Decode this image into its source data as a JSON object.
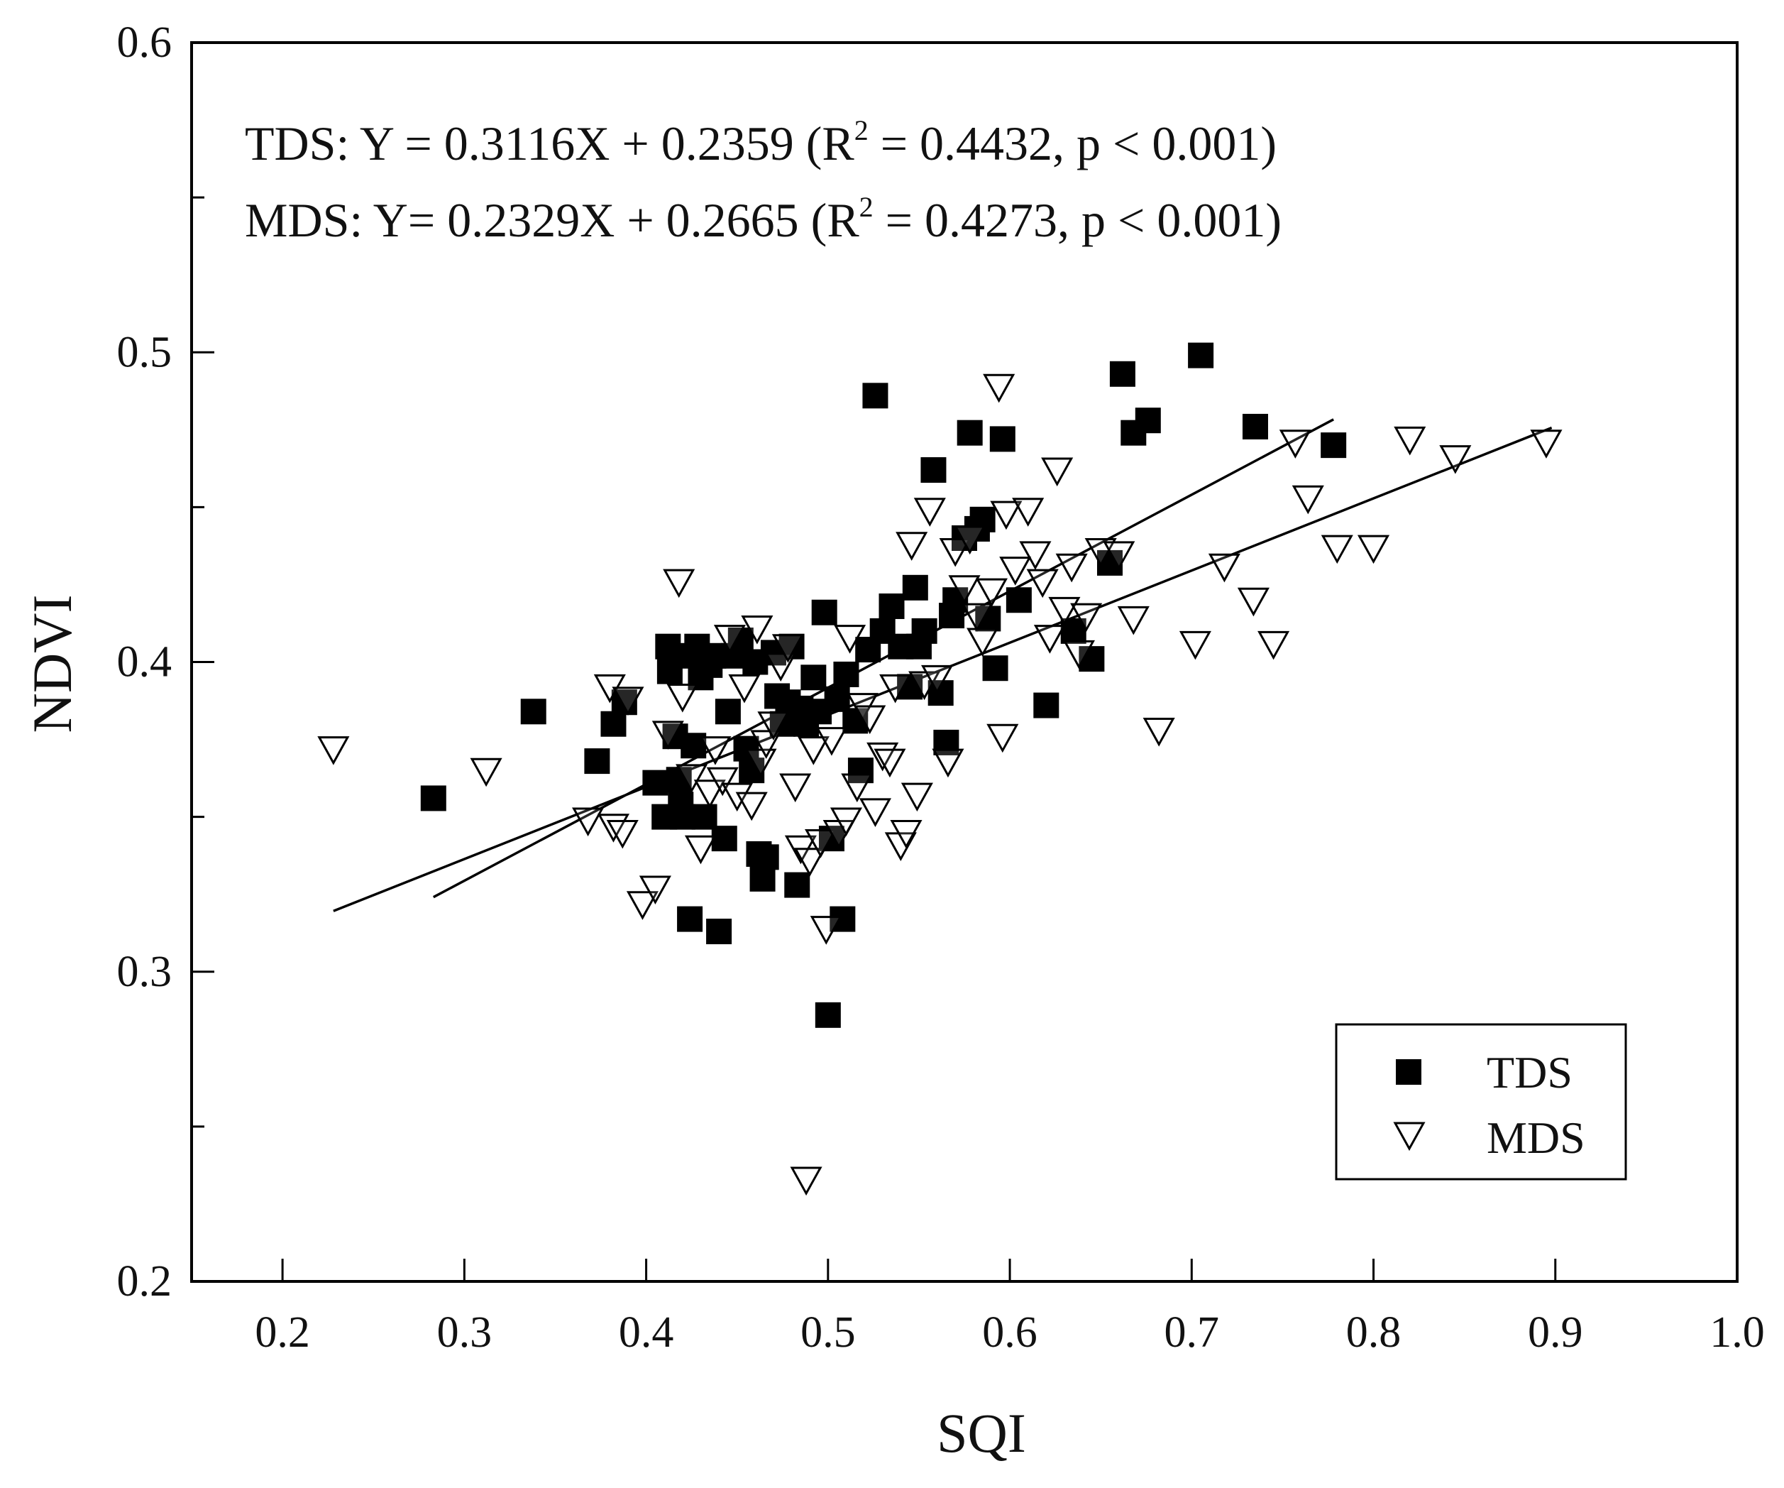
{
  "chart_data": {
    "type": "scatter",
    "xlabel": "SQI",
    "ylabel": "NDVI",
    "xlim": [
      0.15,
      1.0
    ],
    "ylim": [
      0.2,
      0.6
    ],
    "x_ticks_major": [
      0.2,
      0.3,
      0.4,
      0.5,
      0.6,
      0.7,
      0.8,
      0.9,
      1.0
    ],
    "x_tick_labels": [
      "0.2",
      "0.3",
      "0.4",
      "0.5",
      "0.6",
      "0.7",
      "0.8",
      "0.9",
      "1.0"
    ],
    "y_ticks_major": [
      0.2,
      0.3,
      0.4,
      0.5,
      0.6
    ],
    "y_tick_labels": [
      "0.2",
      "0.3",
      "0.4",
      "0.5",
      "0.6"
    ],
    "y_ticks_minor": [
      0.25,
      0.35,
      0.45,
      0.55
    ],
    "grid": false,
    "legend": "bottom-right",
    "annotations": [
      {
        "id": "tds-equation",
        "prefix": "TDS: Y = 0.3116X + 0.2359 (R",
        "sup": "2",
        "suffix": " = 0.4432, p < 0.001)"
      },
      {
        "id": "mds-equation",
        "prefix": "MDS: Y= 0.2329X + 0.2665 (R",
        "sup": "2",
        "suffix": " = 0.4273, p < 0.001)"
      }
    ],
    "series": [
      {
        "name": "TDS",
        "marker": "filled-square",
        "color": "#000000",
        "fit": {
          "slope": 0.3116,
          "intercept": 0.2359,
          "x_range": [
            0.283,
            0.778
          ]
        },
        "points": [
          [
            0.283,
            0.356
          ],
          [
            0.338,
            0.384
          ],
          [
            0.373,
            0.368
          ],
          [
            0.382,
            0.38
          ],
          [
            0.388,
            0.387
          ],
          [
            0.405,
            0.361
          ],
          [
            0.41,
            0.35
          ],
          [
            0.412,
            0.405
          ],
          [
            0.413,
            0.397
          ],
          [
            0.416,
            0.376
          ],
          [
            0.418,
            0.362
          ],
          [
            0.419,
            0.354
          ],
          [
            0.42,
            0.35
          ],
          [
            0.423,
            0.402
          ],
          [
            0.424,
            0.317
          ],
          [
            0.426,
            0.373
          ],
          [
            0.428,
            0.405
          ],
          [
            0.43,
            0.395
          ],
          [
            0.432,
            0.35
          ],
          [
            0.435,
            0.399
          ],
          [
            0.437,
            0.402
          ],
          [
            0.44,
            0.313
          ],
          [
            0.443,
            0.343
          ],
          [
            0.445,
            0.384
          ],
          [
            0.448,
            0.402
          ],
          [
            0.452,
            0.407
          ],
          [
            0.455,
            0.372
          ],
          [
            0.458,
            0.365
          ],
          [
            0.46,
            0.4
          ],
          [
            0.462,
            0.338
          ],
          [
            0.464,
            0.33
          ],
          [
            0.466,
            0.337
          ],
          [
            0.47,
            0.403
          ],
          [
            0.472,
            0.389
          ],
          [
            0.475,
            0.38
          ],
          [
            0.478,
            0.387
          ],
          [
            0.48,
            0.405
          ],
          [
            0.483,
            0.328
          ],
          [
            0.485,
            0.385
          ],
          [
            0.488,
            0.38
          ],
          [
            0.492,
            0.395
          ],
          [
            0.495,
            0.384
          ],
          [
            0.498,
            0.416
          ],
          [
            0.5,
            0.286
          ],
          [
            0.502,
            0.343
          ],
          [
            0.505,
            0.388
          ],
          [
            0.508,
            0.317
          ],
          [
            0.51,
            0.396
          ],
          [
            0.515,
            0.381
          ],
          [
            0.518,
            0.365
          ],
          [
            0.522,
            0.404
          ],
          [
            0.526,
            0.486
          ],
          [
            0.53,
            0.41
          ],
          [
            0.535,
            0.418
          ],
          [
            0.54,
            0.405
          ],
          [
            0.545,
            0.392
          ],
          [
            0.548,
            0.424
          ],
          [
            0.55,
            0.405
          ],
          [
            0.553,
            0.41
          ],
          [
            0.558,
            0.462
          ],
          [
            0.562,
            0.39
          ],
          [
            0.565,
            0.374
          ],
          [
            0.568,
            0.415
          ],
          [
            0.57,
            0.42
          ],
          [
            0.575,
            0.44
          ],
          [
            0.578,
            0.474
          ],
          [
            0.582,
            0.443
          ],
          [
            0.585,
            0.446
          ],
          [
            0.588,
            0.414
          ],
          [
            0.592,
            0.398
          ],
          [
            0.596,
            0.472
          ],
          [
            0.605,
            0.42
          ],
          [
            0.62,
            0.386
          ],
          [
            0.635,
            0.41
          ],
          [
            0.645,
            0.401
          ],
          [
            0.655,
            0.432
          ],
          [
            0.662,
            0.493
          ],
          [
            0.668,
            0.474
          ],
          [
            0.676,
            0.478
          ],
          [
            0.705,
            0.499
          ],
          [
            0.735,
            0.476
          ],
          [
            0.778,
            0.47
          ]
        ]
      },
      {
        "name": "MDS",
        "marker": "open-down-triangle",
        "color": "#000000",
        "fit": {
          "slope": 0.2329,
          "intercept": 0.2665,
          "x_range": [
            0.228,
            0.898
          ]
        },
        "points": [
          [
            0.228,
            0.372
          ],
          [
            0.312,
            0.365
          ],
          [
            0.368,
            0.349
          ],
          [
            0.38,
            0.392
          ],
          [
            0.382,
            0.347
          ],
          [
            0.387,
            0.345
          ],
          [
            0.39,
            0.388
          ],
          [
            0.398,
            0.322
          ],
          [
            0.405,
            0.327
          ],
          [
            0.412,
            0.377
          ],
          [
            0.418,
            0.426
          ],
          [
            0.42,
            0.389
          ],
          [
            0.425,
            0.363
          ],
          [
            0.43,
            0.34
          ],
          [
            0.435,
            0.358
          ],
          [
            0.438,
            0.372
          ],
          [
            0.442,
            0.362
          ],
          [
            0.446,
            0.408
          ],
          [
            0.45,
            0.357
          ],
          [
            0.454,
            0.392
          ],
          [
            0.458,
            0.354
          ],
          [
            0.461,
            0.411
          ],
          [
            0.463,
            0.368
          ],
          [
            0.466,
            0.374
          ],
          [
            0.47,
            0.38
          ],
          [
            0.474,
            0.399
          ],
          [
            0.478,
            0.405
          ],
          [
            0.482,
            0.36
          ],
          [
            0.485,
            0.34
          ],
          [
            0.488,
            0.233
          ],
          [
            0.49,
            0.336
          ],
          [
            0.492,
            0.372
          ],
          [
            0.496,
            0.342
          ],
          [
            0.499,
            0.314
          ],
          [
            0.502,
            0.375
          ],
          [
            0.506,
            0.345
          ],
          [
            0.51,
            0.349
          ],
          [
            0.512,
            0.408
          ],
          [
            0.516,
            0.36
          ],
          [
            0.519,
            0.386
          ],
          [
            0.523,
            0.382
          ],
          [
            0.526,
            0.352
          ],
          [
            0.53,
            0.37
          ],
          [
            0.534,
            0.368
          ],
          [
            0.537,
            0.392
          ],
          [
            0.54,
            0.341
          ],
          [
            0.543,
            0.345
          ],
          [
            0.546,
            0.438
          ],
          [
            0.549,
            0.357
          ],
          [
            0.553,
            0.393
          ],
          [
            0.556,
            0.449
          ],
          [
            0.56,
            0.395
          ],
          [
            0.566,
            0.368
          ],
          [
            0.57,
            0.436
          ],
          [
            0.575,
            0.424
          ],
          [
            0.578,
            0.44
          ],
          [
            0.582,
            0.415
          ],
          [
            0.585,
            0.407
          ],
          [
            0.59,
            0.423
          ],
          [
            0.594,
            0.489
          ],
          [
            0.596,
            0.376
          ],
          [
            0.598,
            0.448
          ],
          [
            0.603,
            0.43
          ],
          [
            0.61,
            0.449
          ],
          [
            0.614,
            0.435
          ],
          [
            0.618,
            0.426
          ],
          [
            0.622,
            0.408
          ],
          [
            0.626,
            0.462
          ],
          [
            0.63,
            0.417
          ],
          [
            0.634,
            0.431
          ],
          [
            0.638,
            0.403
          ],
          [
            0.642,
            0.415
          ],
          [
            0.65,
            0.436
          ],
          [
            0.66,
            0.435
          ],
          [
            0.668,
            0.414
          ],
          [
            0.682,
            0.378
          ],
          [
            0.702,
            0.406
          ],
          [
            0.718,
            0.431
          ],
          [
            0.734,
            0.42
          ],
          [
            0.745,
            0.406
          ],
          [
            0.757,
            0.471
          ],
          [
            0.764,
            0.453
          ],
          [
            0.78,
            0.437
          ],
          [
            0.8,
            0.437
          ],
          [
            0.82,
            0.472
          ],
          [
            0.845,
            0.466
          ],
          [
            0.895,
            0.471
          ]
        ]
      }
    ]
  }
}
